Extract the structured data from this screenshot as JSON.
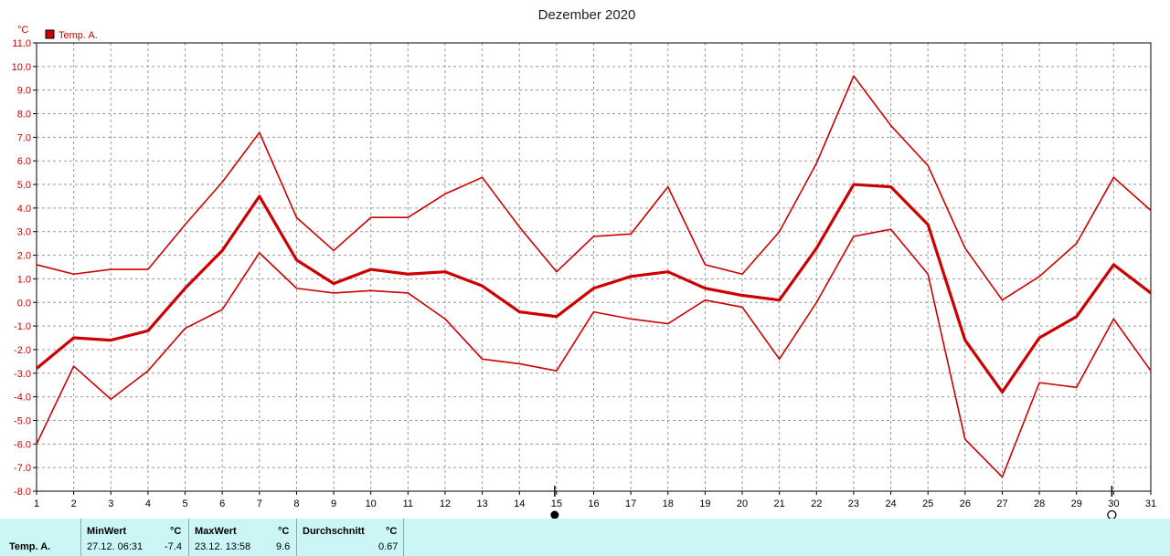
{
  "chart_data": {
    "type": "line",
    "title": "Dezember 2020",
    "unit": "°C",
    "legend": {
      "label": "Temp. A.",
      "color": "#cc0000",
      "position": "top-left"
    },
    "x": [
      1,
      2,
      3,
      4,
      5,
      6,
      7,
      8,
      9,
      10,
      11,
      12,
      13,
      14,
      15,
      16,
      17,
      18,
      19,
      20,
      21,
      22,
      23,
      24,
      25,
      26,
      27,
      28,
      29,
      30,
      31
    ],
    "xlim": [
      1,
      31
    ],
    "ylim": [
      -8,
      11
    ],
    "yticks": [
      "11.0",
      "10.0",
      "9.0",
      "8.0",
      "7.0",
      "6.0",
      "5.0",
      "4.0",
      "3.0",
      "2.0",
      "1.0",
      "0.0",
      "-1.0",
      "-2.0",
      "-3.0",
      "-4.0",
      "-5.0",
      "-6.0",
      "-7.0",
      "-8.0"
    ],
    "grid": true,
    "series": [
      {
        "role": "max",
        "stroke": 1.6,
        "values": [
          1.6,
          1.2,
          1.4,
          1.4,
          3.3,
          5.1,
          7.2,
          3.6,
          2.2,
          3.6,
          3.6,
          4.6,
          5.3,
          3.2,
          1.3,
          2.8,
          2.9,
          4.9,
          1.6,
          1.2,
          3.0,
          5.9,
          9.6,
          7.5,
          5.8,
          2.3,
          0.1,
          1.1,
          2.5,
          5.3,
          3.9
        ]
      },
      {
        "role": "avg",
        "stroke": 3.2,
        "values": [
          -2.8,
          -1.5,
          -1.6,
          -1.2,
          0.6,
          2.2,
          4.5,
          1.8,
          0.8,
          1.4,
          1.2,
          1.3,
          0.7,
          -0.4,
          -0.6,
          0.6,
          1.1,
          1.3,
          0.6,
          0.3,
          0.1,
          2.3,
          5.0,
          4.9,
          3.3,
          -1.6,
          -3.8,
          -1.5,
          -0.6,
          1.6,
          0.4
        ]
      },
      {
        "role": "min",
        "stroke": 1.6,
        "values": [
          -6.0,
          -2.7,
          -4.1,
          -2.9,
          -1.1,
          -0.3,
          2.1,
          0.6,
          0.4,
          0.5,
          0.4,
          -0.7,
          -2.4,
          -2.6,
          -2.9,
          -0.4,
          -0.7,
          -0.9,
          0.1,
          -0.2,
          -2.4,
          0.0,
          2.8,
          3.1,
          1.2,
          -5.8,
          -7.4,
          -3.4,
          -3.6,
          -0.7,
          -2.9
        ]
      }
    ],
    "moon_markers": [
      {
        "day": 15,
        "icon": "full-moon-icon"
      },
      {
        "day": 30,
        "icon": "new-moon-icon"
      }
    ]
  },
  "stats": {
    "series_label": "Temp. A.",
    "min_header": "MinWert",
    "min_unit": "°C",
    "min_time": "27.12.  06:31",
    "min_value": "-7.4",
    "max_header": "MaxWert",
    "max_unit": "°C",
    "max_time": "23.12.  13:58",
    "max_value": "9.6",
    "avg_header": "Durchschnitt",
    "avg_unit": "°C",
    "avg_value": "0.67"
  }
}
